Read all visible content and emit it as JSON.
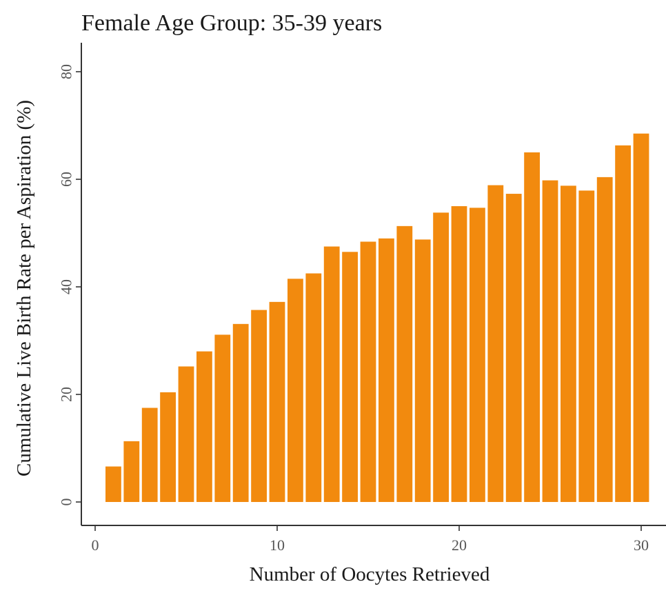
{
  "chart_data": {
    "type": "bar",
    "title": "Female Age Group: 35-39 years",
    "xlabel": "Number of Oocytes Retrieved",
    "ylabel": "Cumulative Live Birth Rate per Aspiration (%)",
    "x": [
      1,
      2,
      3,
      4,
      5,
      6,
      7,
      8,
      9,
      10,
      11,
      12,
      13,
      14,
      15,
      16,
      17,
      18,
      19,
      20,
      21,
      22,
      23,
      24,
      25,
      26,
      27,
      28,
      29,
      30
    ],
    "values": [
      6.6,
      11.3,
      17.5,
      20.4,
      25.2,
      28,
      31.1,
      33.1,
      35.7,
      37.2,
      41.5,
      42.5,
      47.5,
      46.5,
      48.4,
      49,
      51.3,
      48.8,
      53.8,
      55,
      54.7,
      58.9,
      57.3,
      65,
      59.8,
      58.8,
      57.9,
      60.4,
      66.3,
      68.5
    ],
    "xlim": [
      0,
      30.8
    ],
    "ylim": [
      -4,
      82
    ],
    "xticks": [
      0,
      10,
      20,
      30
    ],
    "yticks": [
      0,
      20,
      40,
      60,
      80
    ],
    "bar_color": "#f28a0e",
    "grid": false,
    "legend": "none"
  }
}
